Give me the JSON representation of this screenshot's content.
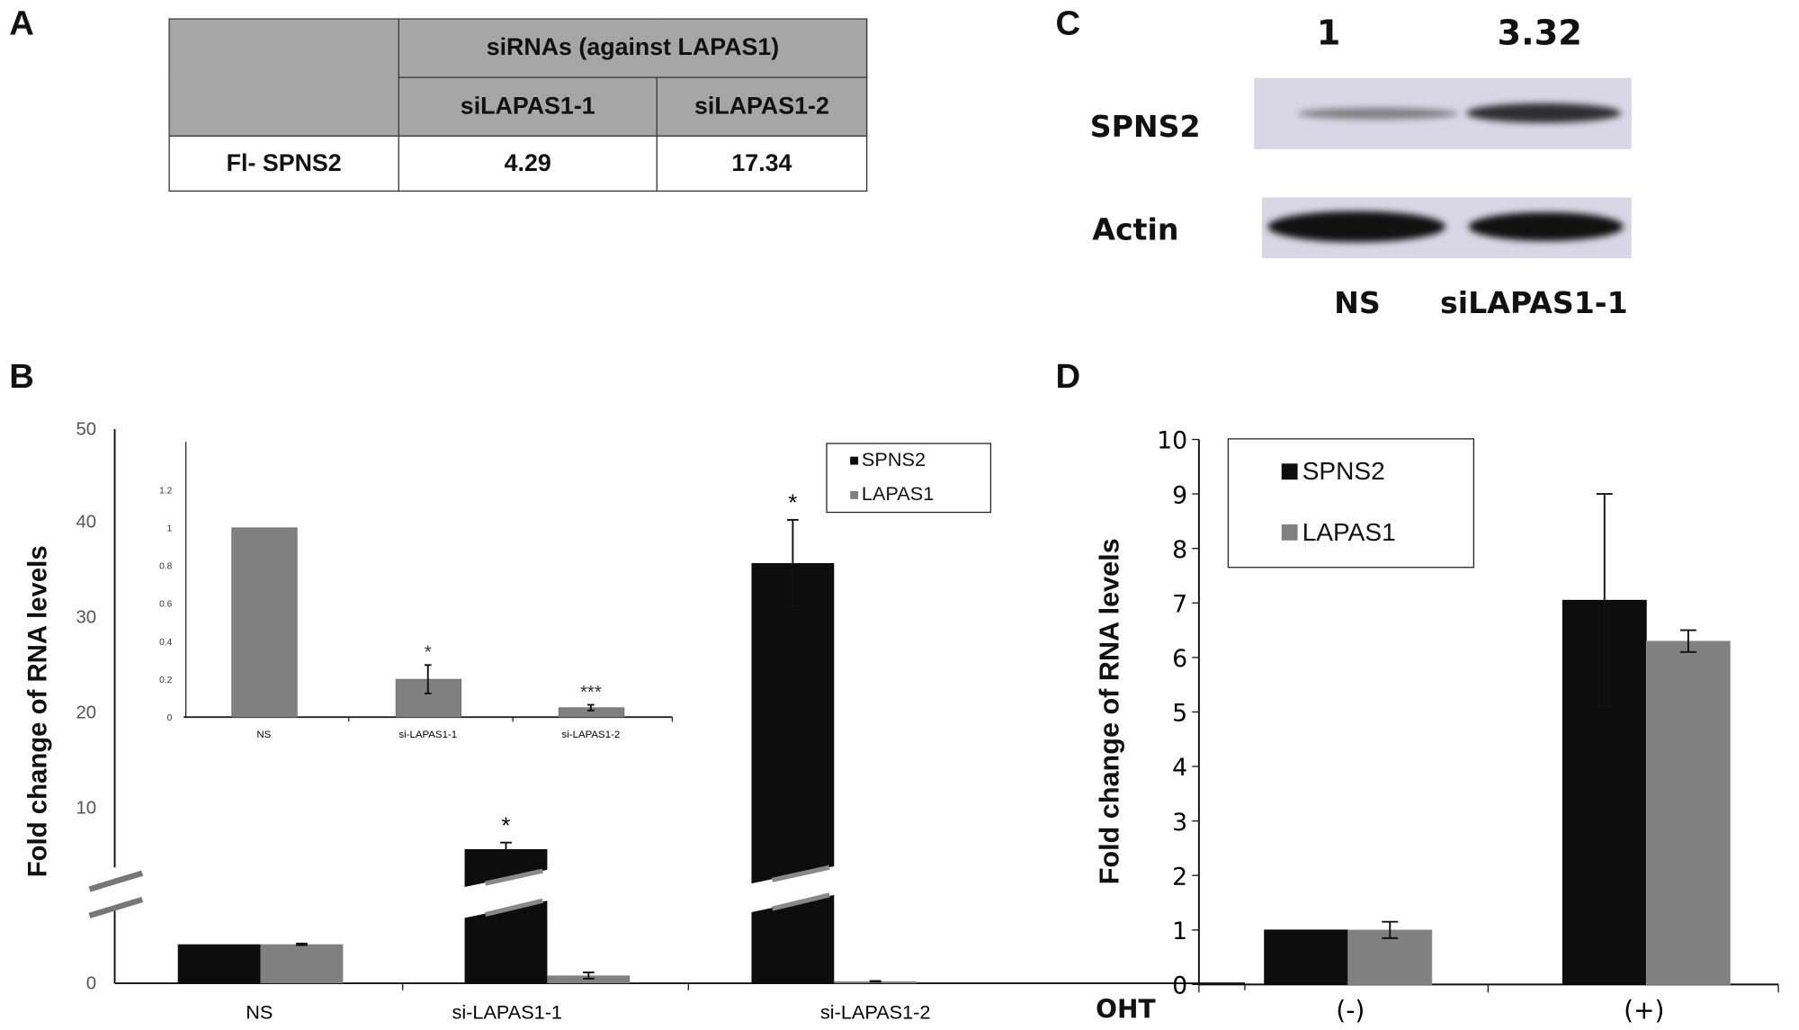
{
  "panel_labels": {
    "a": "A",
    "b": "B",
    "c": "C",
    "d": "D"
  },
  "colors": {
    "SPNS2": "#0d0d0d",
    "LAPAS1": "#808080",
    "table_header": "#a6a6a6",
    "blot_bg": "#d9d7e6"
  },
  "panel_a": {
    "group_header": "siRNAs (against LAPAS1)",
    "columns": [
      "siLAPAS1-1",
      "siLAPAS1-2"
    ],
    "row_label": "Fl- SPNS2",
    "values": [
      "4.29",
      "17.34"
    ]
  },
  "panel_c": {
    "quant": [
      "1",
      "3.32"
    ],
    "rows": [
      "SPNS2",
      "Actin"
    ],
    "lanes": [
      "NS",
      "siLAPAS1-1"
    ]
  },
  "chart_data": [
    {
      "id": "B-main",
      "type": "bar",
      "categories": [
        "NS",
        "si-LAPAS1-1",
        "si-LAPAS1-2"
      ],
      "ylabel": "Fold change of RNA levels",
      "yticks": [
        "0",
        "10",
        "20",
        "30",
        "40",
        "50"
      ],
      "ylim": [
        0,
        50
      ],
      "axis_break": true,
      "legend": "top-right",
      "series": [
        {
          "name": "SPNS2",
          "values": [
            1,
            5.6,
            36
          ],
          "err": [
            0,
            0.7,
            4.6
          ]
        },
        {
          "name": "LAPAS1",
          "values": [
            1,
            0.2,
            0.05
          ],
          "err": [
            0.02,
            0.08,
            0.01
          ]
        }
      ],
      "annotations": [
        "",
        "*",
        "*"
      ]
    },
    {
      "id": "B-inset",
      "type": "bar",
      "categories": [
        "NS",
        "si-LAPAS1-1",
        "si-LAPAS1-2"
      ],
      "yticks": [
        "0",
        "0.2",
        "0.4",
        "0.6",
        "0.8",
        "1",
        "1.2"
      ],
      "ylim": [
        0,
        1.2
      ],
      "series": [
        {
          "name": "LAPAS1",
          "values": [
            1,
            0.2,
            0.05
          ],
          "err": [
            0,
            0.075,
            0.015
          ]
        }
      ],
      "annotations": [
        "",
        "*",
        "***"
      ]
    },
    {
      "id": "D",
      "type": "bar",
      "categories": [
        "(-)",
        "(+)"
      ],
      "xlabel": "OHT",
      "ylabel": "Fold change of RNA levels",
      "yticks": [
        "0",
        "1",
        "2",
        "3",
        "4",
        "5",
        "6",
        "7",
        "8",
        "9",
        "10"
      ],
      "ylim": [
        0,
        10
      ],
      "legend": "top-left",
      "series": [
        {
          "name": "SPNS2",
          "values": [
            1,
            7.05
          ],
          "err": [
            0,
            1.95
          ]
        },
        {
          "name": "LAPAS1",
          "values": [
            1,
            6.3
          ],
          "err": [
            0.15,
            0.2
          ]
        }
      ]
    }
  ]
}
